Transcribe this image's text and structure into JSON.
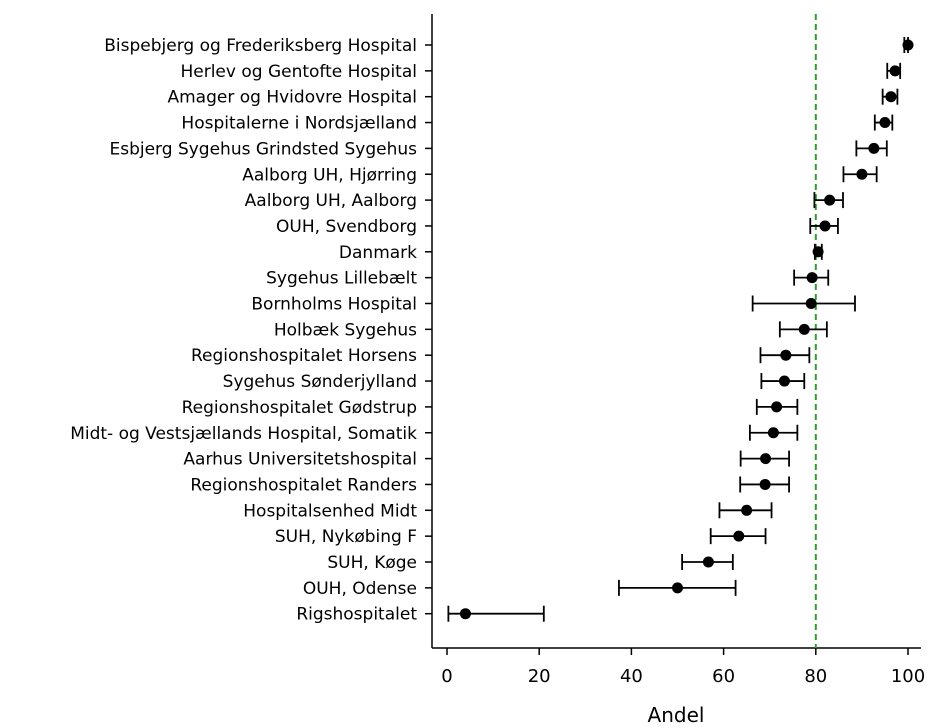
{
  "chart_data": {
    "type": "scatter",
    "orientation": "horizontal",
    "xlabel": "Andel",
    "ylabel": "",
    "title": "",
    "xlim": [
      -2,
      103
    ],
    "xticks": [
      0,
      20,
      40,
      60,
      80,
      100
    ],
    "xtick_labels": [
      "0",
      "20",
      "40",
      "60",
      "80",
      "100"
    ],
    "grid": false,
    "reference_line": {
      "x": 80,
      "color": "#2ca02c",
      "style": "dashed"
    },
    "marker_color": "#000000",
    "categories": [
      "Bispebjerg og Frederiksberg Hospital",
      "Herlev og Gentofte Hospital",
      "Amager og Hvidovre Hospital",
      "Hospitalerne i Nordsjælland",
      "Esbjerg Sygehus Grindsted Sygehus",
      "Aalborg UH, Hjørring",
      "Aalborg UH, Aalborg",
      "OUH, Svendborg",
      "Danmark",
      "Sygehus Lillebælt",
      "Bornholms Hospital",
      "Holbæk Sygehus",
      "Regionshospitalet Horsens",
      "Sygehus Sønderjylland",
      "Regionshospitalet Gødstrup",
      "Midt- og Vestsjællands Hospital, Somatik",
      "Aarhus Universitetshospital",
      "Regionshospitalet Randers",
      "Hospitalsenhed Midt",
      "SUH, Nykøbing F",
      "SUH, Køge",
      "OUH, Odense",
      "Rigshospitalet"
    ],
    "values": [
      100.0,
      97.2,
      96.3,
      95.0,
      92.6,
      90.0,
      83.0,
      82.0,
      80.5,
      79.2,
      79.0,
      77.5,
      73.5,
      73.2,
      71.5,
      70.8,
      69.1,
      69.0,
      65.0,
      63.3,
      56.7,
      50.0,
      4.0
    ],
    "ci_low": [
      99.2,
      95.5,
      94.5,
      92.8,
      88.8,
      86.0,
      79.7,
      78.8,
      79.8,
      75.3,
      66.3,
      72.2,
      68.0,
      68.2,
      67.2,
      65.7,
      63.7,
      63.6,
      59.1,
      57.2,
      51.0,
      37.3,
      0.3
    ],
    "ci_high": [
      100.0,
      98.3,
      97.7,
      96.6,
      95.4,
      93.2,
      85.9,
      84.8,
      81.3,
      82.7,
      88.5,
      82.4,
      78.6,
      77.5,
      76.0,
      76.0,
      74.2,
      74.2,
      70.4,
      69.1,
      62.0,
      62.6,
      21.0
    ]
  }
}
